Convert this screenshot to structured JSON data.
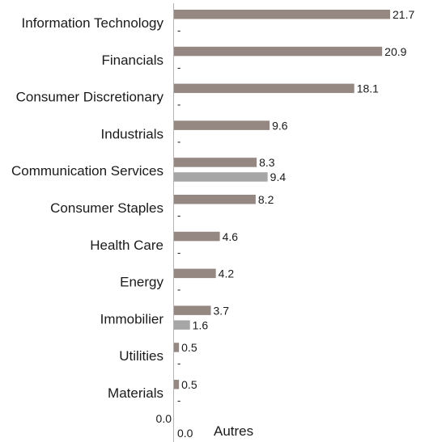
{
  "chart_data": {
    "type": "bar",
    "orientation": "horizontal",
    "categories": [
      "Information Technology",
      "Financials",
      "Consumer Discretionary",
      "Industrials",
      "Communication Services",
      "Consumer Staples",
      "Health Care",
      "Energy",
      "Immobilier",
      "Utilities",
      "Materials"
    ],
    "series": [
      {
        "color": "#958781",
        "values": [
          21.7,
          20.9,
          18.1,
          9.6,
          8.3,
          8.2,
          4.6,
          4.2,
          3.7,
          0.5,
          0.5
        ]
      },
      {
        "color": "#a6a6a6",
        "values": [
          null,
          null,
          null,
          null,
          9.4,
          null,
          null,
          null,
          1.6,
          null,
          null
        ]
      }
    ],
    "missing_label": "-",
    "x_axis_bottom_labels": [
      "0.0",
      "0.0"
    ],
    "other_label": "Autres",
    "xlim": [
      0,
      25
    ],
    "grid": false
  }
}
